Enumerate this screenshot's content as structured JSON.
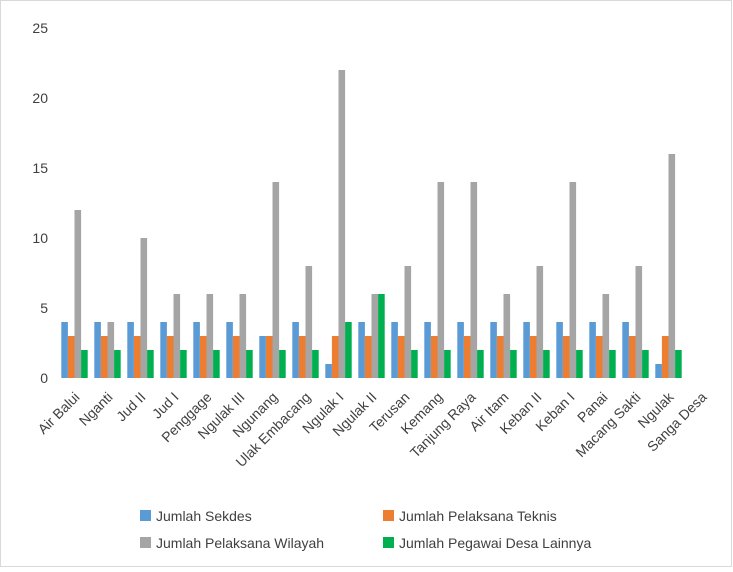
{
  "chart_data": {
    "type": "bar",
    "categories": [
      "Air Balui",
      "Nganti",
      "Jud II",
      "Jud I",
      "Penggage",
      "Ngulak III",
      "Ngunang",
      "Ulak Embacang",
      "Ngulak I",
      "Ngulak II",
      "Terusan",
      "Kemang",
      "Tanjung Raya",
      "Air Itam",
      "Keban II",
      "Keban I",
      "Panai",
      "Macang Sakti",
      "Ngulak",
      "Sanga Desa"
    ],
    "series": [
      {
        "name": "Jumlah Sekdes",
        "color": "#5b9bd5",
        "values": [
          4,
          4,
          4,
          4,
          4,
          4,
          3,
          4,
          1,
          4,
          4,
          4,
          4,
          4,
          4,
          4,
          4,
          4,
          1,
          null
        ]
      },
      {
        "name": "Jumlah Pelaksana Teknis",
        "color": "#ed7d31",
        "values": [
          3,
          3,
          3,
          3,
          3,
          3,
          3,
          3,
          3,
          3,
          3,
          3,
          3,
          3,
          3,
          3,
          3,
          3,
          3,
          null
        ]
      },
      {
        "name": "Jumlah Pelaksana Wilayah",
        "color": "#a5a5a5",
        "values": [
          12,
          4,
          10,
          6,
          6,
          6,
          14,
          8,
          22,
          6,
          8,
          14,
          14,
          6,
          8,
          14,
          6,
          8,
          16,
          null
        ]
      },
      {
        "name": "Jumlah Pegawai Desa Lainnya",
        "color": "#00b050",
        "values": [
          2,
          2,
          2,
          2,
          2,
          2,
          2,
          2,
          4,
          6,
          2,
          2,
          2,
          2,
          2,
          2,
          2,
          2,
          2,
          null
        ]
      }
    ],
    "ylim": [
      0,
      25
    ],
    "yticks": [
      0,
      5,
      10,
      15,
      20,
      25
    ],
    "grid": false
  }
}
